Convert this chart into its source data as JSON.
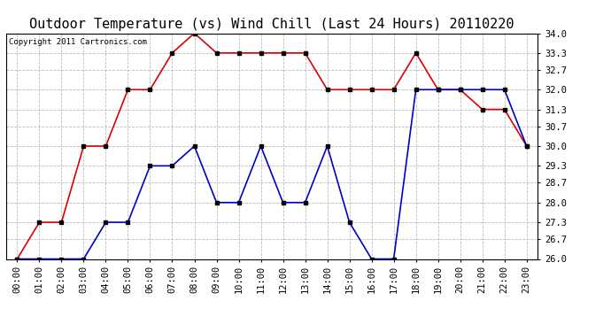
{
  "title": "Outdoor Temperature (vs) Wind Chill (Last 24 Hours) 20110220",
  "copyright": "Copyright 2011 Cartronics.com",
  "x_labels": [
    "00:00",
    "01:00",
    "02:00",
    "03:00",
    "04:00",
    "05:00",
    "06:00",
    "07:00",
    "08:00",
    "09:00",
    "10:00",
    "11:00",
    "12:00",
    "13:00",
    "14:00",
    "15:00",
    "16:00",
    "17:00",
    "18:00",
    "19:00",
    "20:00",
    "21:00",
    "22:00",
    "23:00"
  ],
  "red_data": [
    26.0,
    27.3,
    27.3,
    30.0,
    30.0,
    32.0,
    32.0,
    33.3,
    34.0,
    33.3,
    33.3,
    33.3,
    33.3,
    33.3,
    32.0,
    32.0,
    32.0,
    32.0,
    33.3,
    32.0,
    32.0,
    31.3,
    31.3,
    30.0
  ],
  "blue_data": [
    26.0,
    26.0,
    26.0,
    26.0,
    27.3,
    27.3,
    29.3,
    29.3,
    30.0,
    28.0,
    28.0,
    30.0,
    28.0,
    28.0,
    30.0,
    27.3,
    26.0,
    26.0,
    32.0,
    32.0,
    32.0,
    32.0,
    32.0,
    30.0
  ],
  "red_color": "#dd0000",
  "blue_color": "#0000cc",
  "marker": "s",
  "marker_size": 3,
  "marker_color": "#000000",
  "ylim_min": 26.0,
  "ylim_max": 34.0,
  "yticks": [
    26.0,
    26.7,
    27.3,
    28.0,
    28.7,
    29.3,
    30.0,
    30.7,
    31.3,
    32.0,
    32.7,
    33.3,
    34.0
  ],
  "background_color": "#ffffff",
  "plot_bg_color": "#ffffff",
  "grid_color": "#bbbbbb",
  "title_fontsize": 11,
  "tick_fontsize": 7.5,
  "copyright_fontsize": 6.5,
  "line_width": 1.2
}
